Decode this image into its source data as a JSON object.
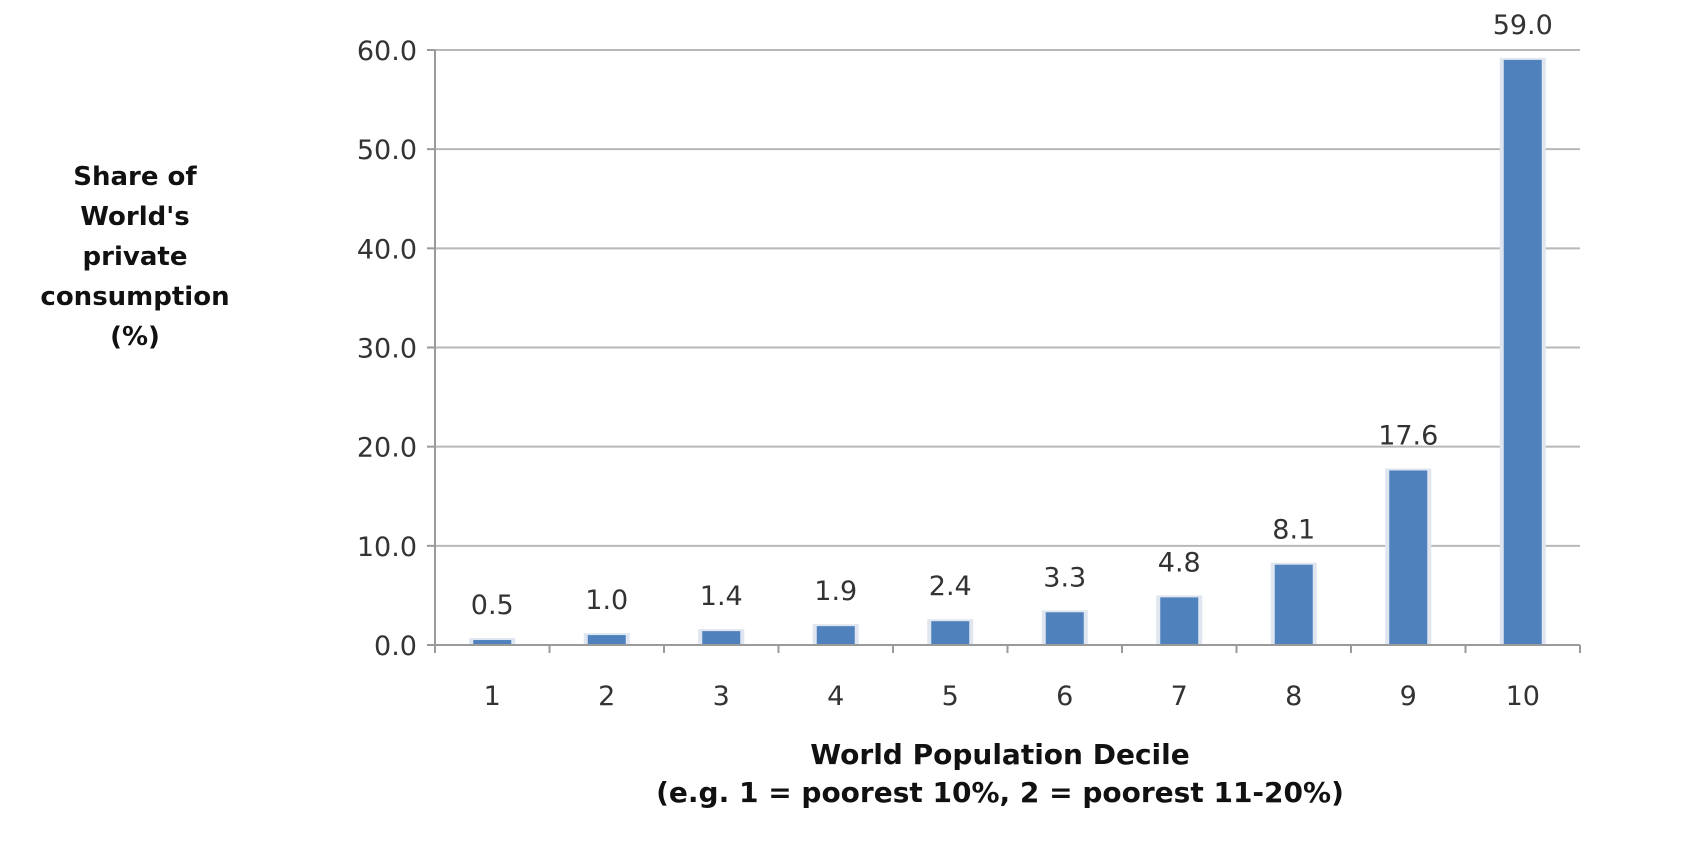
{
  "chart_data": {
    "type": "bar",
    "categories": [
      "1",
      "2",
      "3",
      "4",
      "5",
      "6",
      "7",
      "8",
      "9",
      "10"
    ],
    "values": [
      0.5,
      1.0,
      1.4,
      1.9,
      2.4,
      3.3,
      4.8,
      8.1,
      17.6,
      59.0
    ],
    "data_labels": [
      "0.5",
      "1.0",
      "1.4",
      "1.9",
      "2.4",
      "3.3",
      "4.8",
      "8.1",
      "17.6",
      "59.0"
    ],
    "ylim": [
      0,
      60
    ],
    "yticks": [
      "0.0",
      "10.0",
      "20.0",
      "30.0",
      "40.0",
      "50.0",
      "60.0"
    ],
    "ylabel_lines": [
      "Share of",
      "World's",
      "private",
      "consumption",
      "(%)"
    ],
    "xlabel_lines": [
      "World Population  Decile",
      "(e.g. 1 = poorest 10%, 2 = poorest 11-20%)"
    ],
    "bar_color": "#4f81bd",
    "grid": true,
    "legend": "none"
  }
}
